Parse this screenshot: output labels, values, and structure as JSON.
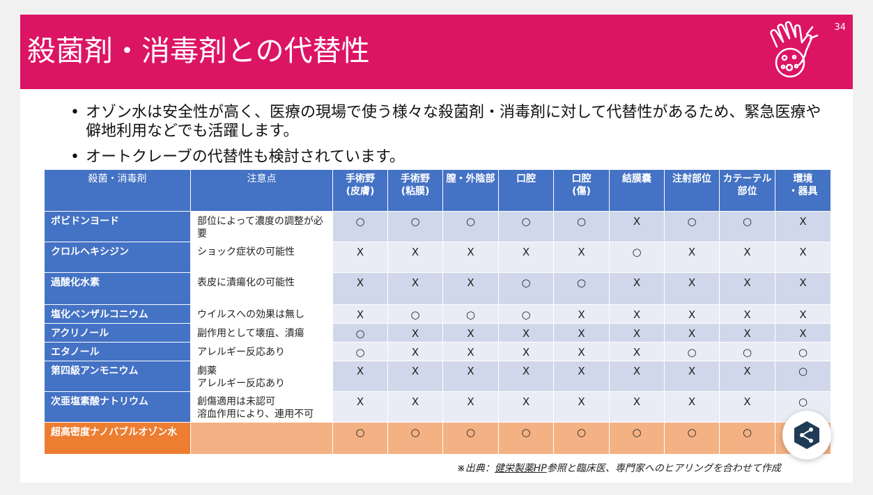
{
  "header": {
    "title": "殺菌剤・消毒剤との代替性",
    "page_number": "34",
    "logo_icon": "hand-bacteria-icon"
  },
  "bullets": [
    "オゾン水は安全性が高く、医療の現場で使う様々な殺菌剤・消毒剤に対して代替性があるため、緊急医療や僻地利用などでも活躍します。",
    "オートクレーブの代替性も検討されています。"
  ],
  "table": {
    "headers": [
      "殺菌・消毒剤",
      "注意点",
      "手術野\n(皮膚)",
      "手術野\n(粘膜)",
      "膣・外陰部",
      "口腔",
      "口腔\n(傷)",
      "結膜嚢",
      "注射部位",
      "カテーテル\n部位",
      "環境\n・器具"
    ],
    "rows": [
      {
        "name": "ポビドンヨード",
        "note": "部位によって濃度の調整が必要",
        "marks": [
          "○",
          "○",
          "○",
          "○",
          "○",
          "X",
          "○",
          "○",
          "X"
        ]
      },
      {
        "name": "クロルヘキシジン",
        "note": "ショック症状の可能性",
        "marks": [
          "X",
          "X",
          "X",
          "X",
          "X",
          "○",
          "X",
          "X",
          "X"
        ]
      },
      {
        "name": "過酸化水素",
        "note": "表皮に潰瘍化の可能性",
        "marks": [
          "X",
          "X",
          "X",
          "○",
          "○",
          "X",
          "X",
          "X",
          "X"
        ]
      },
      {
        "name": "塩化ベンザルコニウム",
        "note": "ウイルスへの効果は無し",
        "marks": [
          "X",
          "○",
          "○",
          "○",
          "X",
          "X",
          "X",
          "X",
          "X"
        ]
      },
      {
        "name": "アクリノール",
        "note": "副作用として壊疽、潰瘍",
        "marks": [
          "○",
          "X",
          "X",
          "X",
          "X",
          "X",
          "X",
          "X",
          "X"
        ]
      },
      {
        "name": "エタノール",
        "note": "アレルギー反応あり",
        "marks": [
          "○",
          "X",
          "X",
          "X",
          "X",
          "X",
          "○",
          "○",
          "○"
        ]
      },
      {
        "name": "第四級アンモニウム",
        "note": "劇薬\nアレルギー反応あり",
        "marks": [
          "X",
          "X",
          "X",
          "X",
          "X",
          "X",
          "X",
          "X",
          "○"
        ]
      },
      {
        "name": "次亜塩素酸ナトリウム",
        "note": "創傷適用は未認可\n溶血作用により、連用不可",
        "marks": [
          "X",
          "X",
          "X",
          "X",
          "X",
          "X",
          "X",
          "X",
          "○"
        ]
      },
      {
        "name": "超高密度ナノバブルオゾン水",
        "note": "",
        "marks": [
          "○",
          "○",
          "○",
          "○",
          "○",
          "○",
          "○",
          "○",
          ""
        ]
      }
    ]
  },
  "source": {
    "prefix": "※出典：",
    "link": "健栄製薬HP",
    "suffix": "参照と臨床医、専門家へのヒアリングを合わせて作成"
  },
  "fab": {
    "icon": "share-hexagon-icon"
  },
  "colors": {
    "header": "#dc1464",
    "table_header": "#4472c4",
    "highlight_name": "#ed7d31",
    "highlight_cell": "#f4b183",
    "row_odd": "#d0d7ea",
    "row_even": "#e9ecf5"
  }
}
